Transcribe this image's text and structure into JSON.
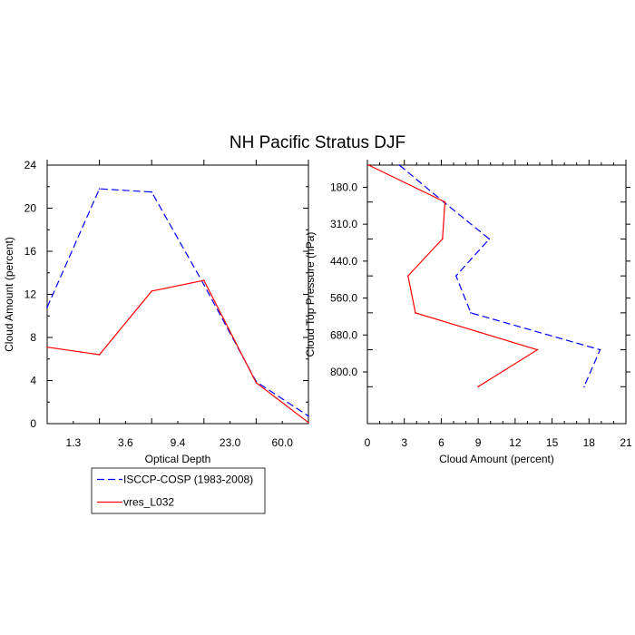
{
  "title": "NH Pacific Stratus DJF",
  "legend": {
    "entries": [
      {
        "label": "ISCCP-COSP (1983-2008)",
        "color": "#0000ff",
        "dash": "dashed"
      },
      {
        "label": "vres_L032",
        "color": "#ff0000",
        "dash": "solid"
      }
    ]
  },
  "chart_data": [
    {
      "type": "line",
      "title": "NH Pacific Stratus DJF",
      "xlabel": "Optical Depth",
      "ylabel": "Cloud Amount (percent)",
      "x_tick_labels": [
        "1.3",
        "3.6",
        "9.4",
        "23.0",
        "60.0"
      ],
      "x_bins": [
        0,
        1,
        2,
        3,
        4,
        5
      ],
      "ylim": [
        0,
        24
      ],
      "y_ticks": [
        0,
        4,
        8,
        12,
        16,
        20,
        24
      ],
      "series": [
        {
          "name": "ISCCP-COSP (1983-2008)",
          "color": "#0000ff",
          "dash": "dashed",
          "values": [
            10.8,
            21.8,
            21.5,
            12.9,
            3.9,
            0.7
          ]
        },
        {
          "name": "vres_L032",
          "color": "#ff0000",
          "dash": "solid",
          "values": [
            7.1,
            6.4,
            12.3,
            13.3,
            3.8,
            0.1
          ]
        }
      ]
    },
    {
      "type": "line",
      "xlabel": "Cloud Amount (percent)",
      "ylabel": "Cloud Top Pressure (hPa)",
      "xlim": [
        0,
        21
      ],
      "x_ticks": [
        0,
        3,
        6,
        9,
        12,
        15,
        18,
        21
      ],
      "x_tick_labels": [
        "0",
        "3",
        "6",
        "9",
        "12",
        "15",
        "18",
        "21"
      ],
      "y_tick_labels": [
        "180.0",
        "310.0",
        "440.0",
        "560.0",
        "680.0",
        "800.0"
      ],
      "y_levels": [
        0,
        1,
        2,
        3,
        4,
        5,
        6,
        7
      ],
      "series": [
        {
          "name": "ISCCP-COSP (1983-2008)",
          "color": "#0000ff",
          "dash": "dashed",
          "values": [
            2.6,
            6.2,
            9.9,
            7.2,
            8.4,
            18.9,
            17.6
          ]
        },
        {
          "name": "vres_L032",
          "color": "#ff0000",
          "dash": "solid",
          "values": [
            0.1,
            6.3,
            6.1,
            3.3,
            3.9,
            13.8,
            9.0
          ]
        }
      ]
    }
  ]
}
